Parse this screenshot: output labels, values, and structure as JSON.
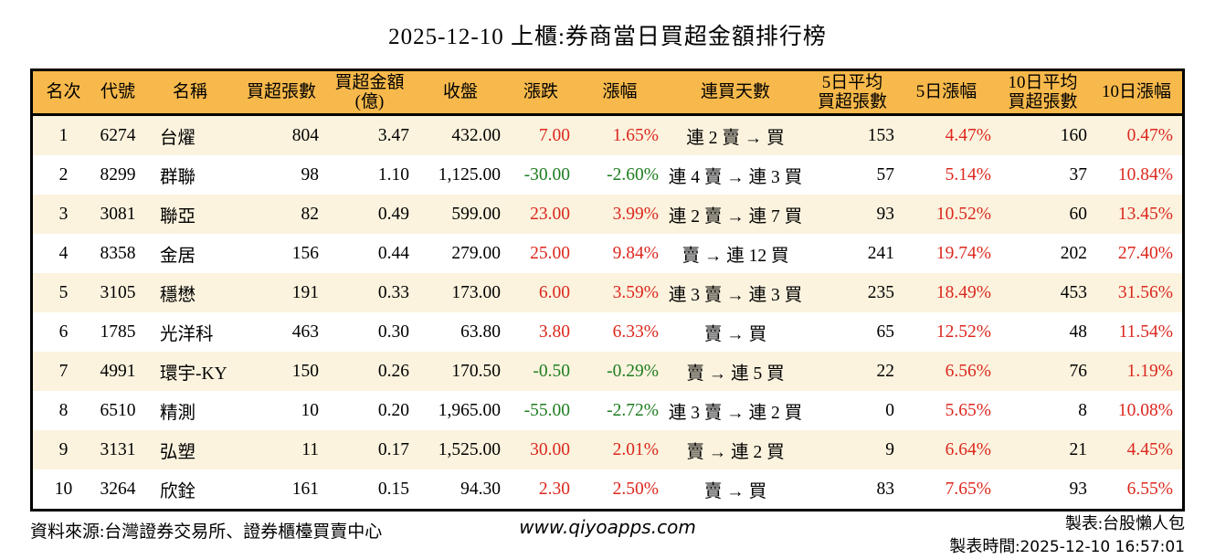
{
  "title": "2025-12-10 上櫃:券商當日買超金額排行榜",
  "colors": {
    "header_bg": "#F7B94B",
    "alt_bg": "#FBF3DE",
    "up_red": "#DC281E",
    "down_green": "#1E7D20",
    "border_black": "#000000"
  },
  "header_cells": [
    {
      "line1": "名次"
    },
    {
      "line1": "代號"
    },
    {
      "line1": "名稱"
    },
    {
      "line1": "買超張數"
    },
    {
      "line1": "買超金額",
      "line2": "(億)"
    },
    {
      "line1": "收盤"
    },
    {
      "line1": "漲跌"
    },
    {
      "line1": "漲幅"
    },
    {
      "line1": "連買天數"
    },
    {
      "line1": "5日平均",
      "line2": "買超張數"
    },
    {
      "line1": "5日漲幅"
    },
    {
      "line1": "10日平均",
      "line2": "買超張數"
    },
    {
      "line1": "10日漲幅"
    }
  ],
  "chart_data": {
    "type": "table",
    "title": "2025-12-10 上櫃:券商當日買超金額排行榜",
    "columns": [
      "名次",
      "代號",
      "名稱",
      "買超張數",
      "買超金額(億)",
      "收盤",
      "漲跌",
      "漲幅",
      "連買天數",
      "5日平均買超張數",
      "5日漲幅",
      "10日平均買超張數",
      "10日漲幅"
    ],
    "rows": [
      {
        "rank": "1",
        "code": "6274",
        "name": "台燿",
        "lots": "804",
        "amount": "3.47",
        "close": "432.00",
        "change": "7.00",
        "change_dir": "up",
        "change_pct": "1.65%",
        "change_pct_dir": "up",
        "streak": "連 2 賣 → 買",
        "avg5": "153",
        "pct5": "4.47%",
        "pct5_dir": "up",
        "avg10": "160",
        "pct10": "0.47%",
        "pct10_dir": "up"
      },
      {
        "rank": "2",
        "code": "8299",
        "name": "群聯",
        "lots": "98",
        "amount": "1.10",
        "close": "1,125.00",
        "change": "-30.00",
        "change_dir": "down",
        "change_pct": "-2.60%",
        "change_pct_dir": "down",
        "streak": "連 4 賣 → 連 3 買",
        "avg5": "57",
        "pct5": "5.14%",
        "pct5_dir": "up",
        "avg10": "37",
        "pct10": "10.84%",
        "pct10_dir": "up"
      },
      {
        "rank": "3",
        "code": "3081",
        "name": "聯亞",
        "lots": "82",
        "amount": "0.49",
        "close": "599.00",
        "change": "23.00",
        "change_dir": "up",
        "change_pct": "3.99%",
        "change_pct_dir": "up",
        "streak": "連 2 賣 → 連 7 買",
        "avg5": "93",
        "pct5": "10.52%",
        "pct5_dir": "up",
        "avg10": "60",
        "pct10": "13.45%",
        "pct10_dir": "up"
      },
      {
        "rank": "4",
        "code": "8358",
        "name": "金居",
        "lots": "156",
        "amount": "0.44",
        "close": "279.00",
        "change": "25.00",
        "change_dir": "up",
        "change_pct": "9.84%",
        "change_pct_dir": "up",
        "streak": "賣 → 連 12 買",
        "avg5": "241",
        "pct5": "19.74%",
        "pct5_dir": "up",
        "avg10": "202",
        "pct10": "27.40%",
        "pct10_dir": "up"
      },
      {
        "rank": "5",
        "code": "3105",
        "name": "穩懋",
        "lots": "191",
        "amount": "0.33",
        "close": "173.00",
        "change": "6.00",
        "change_dir": "up",
        "change_pct": "3.59%",
        "change_pct_dir": "up",
        "streak": "連 3 賣 → 連 3 買",
        "avg5": "235",
        "pct5": "18.49%",
        "pct5_dir": "up",
        "avg10": "453",
        "pct10": "31.56%",
        "pct10_dir": "up"
      },
      {
        "rank": "6",
        "code": "1785",
        "name": "光洋科",
        "lots": "463",
        "amount": "0.30",
        "close": "63.80",
        "change": "3.80",
        "change_dir": "up",
        "change_pct": "6.33%",
        "change_pct_dir": "up",
        "streak": "賣 → 買",
        "avg5": "65",
        "pct5": "12.52%",
        "pct5_dir": "up",
        "avg10": "48",
        "pct10": "11.54%",
        "pct10_dir": "up"
      },
      {
        "rank": "7",
        "code": "4991",
        "name": "環宇-KY",
        "lots": "150",
        "amount": "0.26",
        "close": "170.50",
        "change": "-0.50",
        "change_dir": "down",
        "change_pct": "-0.29%",
        "change_pct_dir": "down",
        "streak": "賣 → 連 5 買",
        "avg5": "22",
        "pct5": "6.56%",
        "pct5_dir": "up",
        "avg10": "76",
        "pct10": "1.19%",
        "pct10_dir": "up"
      },
      {
        "rank": "8",
        "code": "6510",
        "name": "精測",
        "lots": "10",
        "amount": "0.20",
        "close": "1,965.00",
        "change": "-55.00",
        "change_dir": "down",
        "change_pct": "-2.72%",
        "change_pct_dir": "down",
        "streak": "連 3 賣 → 連 2 買",
        "avg5": "0",
        "pct5": "5.65%",
        "pct5_dir": "up",
        "avg10": "8",
        "pct10": "10.08%",
        "pct10_dir": "up"
      },
      {
        "rank": "9",
        "code": "3131",
        "name": "弘塑",
        "lots": "11",
        "amount": "0.17",
        "close": "1,525.00",
        "change": "30.00",
        "change_dir": "up",
        "change_pct": "2.01%",
        "change_pct_dir": "up",
        "streak": "賣 → 連 2 買",
        "avg5": "9",
        "pct5": "6.64%",
        "pct5_dir": "up",
        "avg10": "21",
        "pct10": "4.45%",
        "pct10_dir": "up"
      },
      {
        "rank": "10",
        "code": "3264",
        "name": "欣銓",
        "lots": "161",
        "amount": "0.15",
        "close": "94.30",
        "change": "2.30",
        "change_dir": "up",
        "change_pct": "2.50%",
        "change_pct_dir": "up",
        "streak": "賣 → 買",
        "avg5": "83",
        "pct5": "7.65%",
        "pct5_dir": "up",
        "avg10": "93",
        "pct10": "6.55%",
        "pct10_dir": "up"
      }
    ]
  },
  "footer": {
    "source": "資料來源:台灣證券交易所、證券櫃檯買賣中心",
    "website": "www.qiyoapps.com",
    "maker": "製表:台股懶人包",
    "time_label": "製表時間:",
    "time_value": "2025-12-10 16:57:01"
  }
}
